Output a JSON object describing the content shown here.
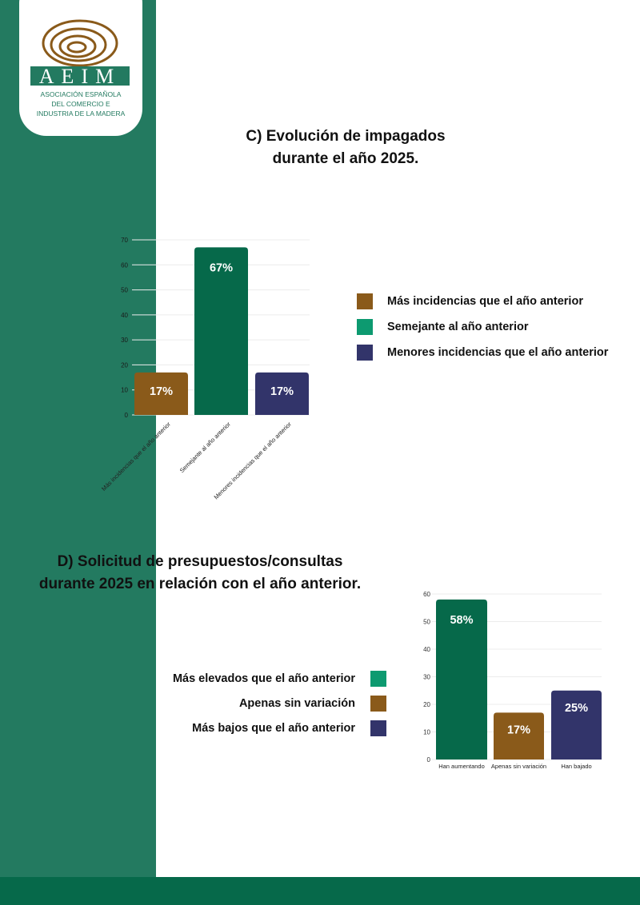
{
  "logo": {
    "word": "AEIM",
    "subtitle": [
      "ASOCIACIÓN ESPAÑOLA",
      "DEL COMERCIO E",
      "INDUSTRIA DE LA MADERA"
    ]
  },
  "colors": {
    "sidebar": "#237a60",
    "brown": "#8a5a1a",
    "green": "#06694a",
    "navy": "#32346a",
    "legend_green": "#0d9a70"
  },
  "section_c": {
    "title_lines": [
      "C) Evolución de impagados",
      "durante el año 2025."
    ],
    "legend": [
      "Más incidencias que el año anterior",
      "Semejante al año anterior",
      "Menores incidencias que el año anterior"
    ]
  },
  "section_d": {
    "title_lines": [
      "D) Solicitud de presupuestos/consultas",
      "durante 2025 en relación con el año anterior."
    ],
    "legend": [
      "Más elevados que el año anterior",
      "Apenas sin variación",
      "Más bajos que el año anterior"
    ]
  },
  "chart_data": [
    {
      "type": "bar",
      "title": "C) Evolución de impagados durante el año 2025.",
      "categories": [
        "Más incidencias que el año anterior",
        "Semejante al año anterior",
        "Menores incidencias que el año anterior"
      ],
      "values": [
        17,
        67,
        17
      ],
      "labels": [
        "17%",
        "67%",
        "17%"
      ],
      "colors": [
        "#8a5a1a",
        "#06694a",
        "#32346a"
      ],
      "ylim": [
        0,
        70
      ],
      "yticks": [
        0,
        10,
        20,
        30,
        40,
        50,
        60,
        70
      ],
      "grid": true,
      "legend": "right"
    },
    {
      "type": "bar",
      "title": "D) Solicitud de presupuestos/consultas durante 2025 en relación con el año anterior.",
      "categories": [
        "Han aumentando",
        "Apenas sin variación",
        "Han bajado"
      ],
      "values": [
        58,
        17,
        25
      ],
      "labels": [
        "58%",
        "17%",
        "25%"
      ],
      "colors": [
        "#06694a",
        "#8a5a1a",
        "#32346a"
      ],
      "ylim": [
        0,
        60
      ],
      "yticks": [
        0,
        10,
        20,
        30,
        40,
        50,
        60
      ],
      "grid": true,
      "legend": "left"
    }
  ]
}
